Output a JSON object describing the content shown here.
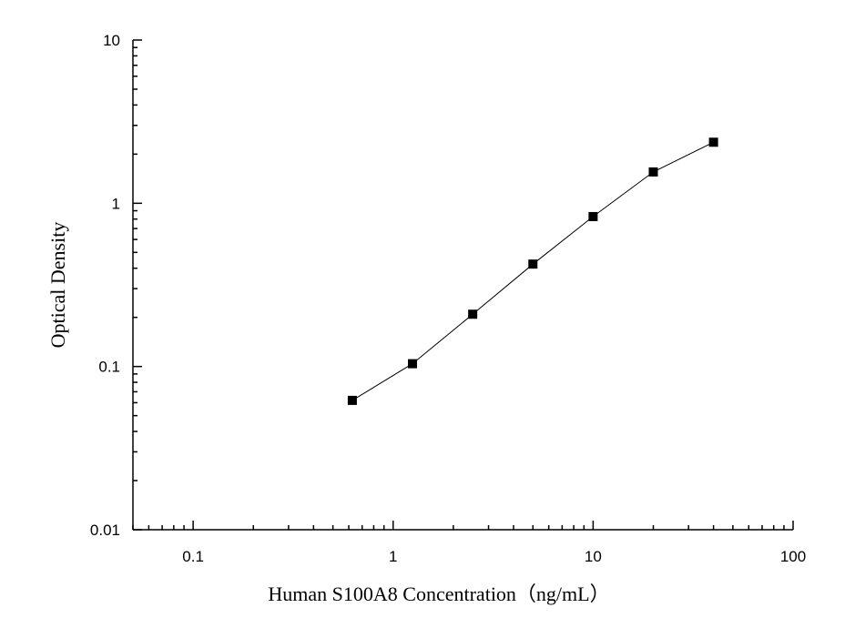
{
  "chart_data": {
    "type": "scatter",
    "title": "",
    "xlabel": "Human S100A8 Concentration（ng/mL）",
    "ylabel": "Optical Density",
    "x_scale": "log",
    "y_scale": "log",
    "xlim": [
      0.05,
      100
    ],
    "ylim": [
      0.01,
      10
    ],
    "x_ticks": [
      0.1,
      1,
      10,
      100
    ],
    "x_tick_labels": [
      "0.1",
      "1",
      "10",
      "100"
    ],
    "y_ticks": [
      0.01,
      0.1,
      1,
      10
    ],
    "y_tick_labels": [
      "0.01",
      "0.1",
      "1",
      "10"
    ],
    "grid": false,
    "legend": "none",
    "marker": "square",
    "line": "connected",
    "color": "#000000",
    "series": [
      {
        "x": [
          0.625,
          1.25,
          2.5,
          5,
          10,
          20,
          40
        ],
        "y": [
          0.062,
          0.104,
          0.209,
          0.424,
          0.829,
          1.556,
          2.366
        ]
      }
    ]
  }
}
